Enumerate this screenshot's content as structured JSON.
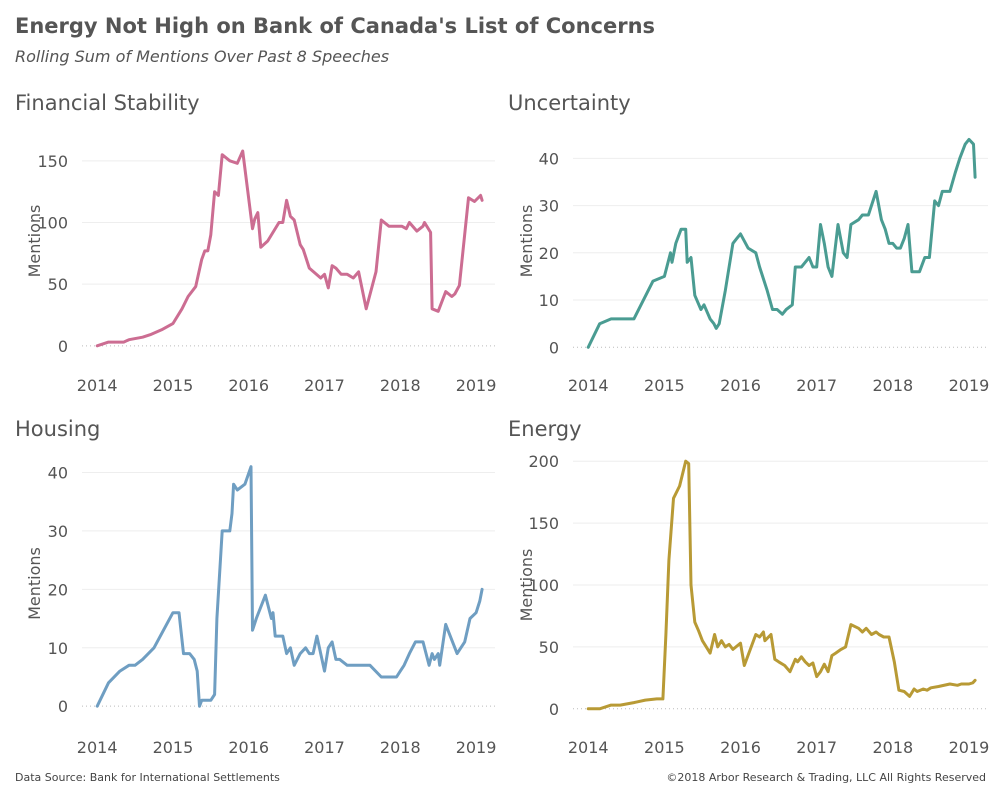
{
  "title": "Energy Not High on Bank of Canada's List of Concerns",
  "subtitle": "Rolling Sum of Mentions Over Past 8 Speeches",
  "footer": {
    "source": "Data Source: Bank for International Settlements",
    "copyright": "©2018 Arbor Research & Trading, LLC   All Rights Reserved"
  },
  "chart_data": [
    {
      "type": "line",
      "title": "Financial Stability",
      "ylabel": "Mentions",
      "color": "#cc6d92",
      "xlim": [
        2013.8,
        2019.25
      ],
      "ylim": [
        -5,
        175
      ],
      "xticks": [
        2014,
        2015,
        2016,
        2017,
        2018,
        2019
      ],
      "yticks": [
        0,
        50,
        100,
        150
      ],
      "x": [
        2014.0,
        2014.15,
        2014.35,
        2014.42,
        2014.6,
        2014.7,
        2014.85,
        2015.0,
        2015.12,
        2015.2,
        2015.3,
        2015.38,
        2015.42,
        2015.46,
        2015.5,
        2015.55,
        2015.6,
        2015.65,
        2015.75,
        2015.85,
        2015.92,
        2016.05,
        2016.08,
        2016.12,
        2016.16,
        2016.25,
        2016.4,
        2016.45,
        2016.5,
        2016.55,
        2016.6,
        2016.68,
        2016.72,
        2016.8,
        2016.95,
        2017.0,
        2017.05,
        2017.1,
        2017.15,
        2017.22,
        2017.3,
        2017.38,
        2017.45,
        2017.55,
        2017.68,
        2017.75,
        2017.85,
        2018.02,
        2018.08,
        2018.12,
        2018.22,
        2018.3,
        2018.32,
        2018.4,
        2018.42,
        2018.5,
        2018.6,
        2018.68,
        2018.72,
        2018.78,
        2018.9,
        2018.98,
        2019.06,
        2019.08
      ],
      "values": [
        0,
        3,
        3,
        5,
        7,
        9,
        13,
        18,
        30,
        40,
        48,
        70,
        77,
        77,
        90,
        125,
        122,
        155,
        150,
        148,
        158,
        95,
        103,
        108,
        80,
        85,
        100,
        100,
        118,
        105,
        102,
        82,
        78,
        63,
        55,
        58,
        47,
        65,
        63,
        58,
        58,
        55,
        60,
        30,
        60,
        102,
        97,
        97,
        95,
        100,
        93,
        97,
        100,
        92,
        30,
        28,
        44,
        40,
        42,
        49,
        120,
        117,
        122,
        118
      ]
    },
    {
      "type": "line",
      "title": "Uncertainty",
      "ylabel": "Mentions",
      "color": "#4a9c92",
      "xlim": [
        2013.8,
        2019.25
      ],
      "ylim": [
        -1,
        46
      ],
      "xticks": [
        2014,
        2015,
        2016,
        2017,
        2018,
        2019
      ],
      "yticks": [
        0,
        10,
        20,
        30,
        40
      ],
      "x": [
        2014.0,
        2014.15,
        2014.3,
        2014.45,
        2014.6,
        2014.85,
        2015.0,
        2015.08,
        2015.1,
        2015.15,
        2015.22,
        2015.28,
        2015.3,
        2015.35,
        2015.4,
        2015.48,
        2015.52,
        2015.6,
        2015.65,
        2015.68,
        2015.72,
        2015.8,
        2015.9,
        2015.95,
        2016.0,
        2016.1,
        2016.2,
        2016.25,
        2016.35,
        2016.42,
        2016.48,
        2016.55,
        2016.6,
        2016.68,
        2016.72,
        2016.8,
        2016.85,
        2016.9,
        2016.95,
        2017.0,
        2017.05,
        2017.1,
        2017.15,
        2017.2,
        2017.28,
        2017.35,
        2017.4,
        2017.45,
        2017.55,
        2017.6,
        2017.68,
        2017.78,
        2017.85,
        2017.9,
        2017.95,
        2018.0,
        2018.05,
        2018.1,
        2018.15,
        2018.2,
        2018.25,
        2018.3,
        2018.35,
        2018.42,
        2018.48,
        2018.55,
        2018.6,
        2018.65,
        2018.75,
        2018.82,
        2018.88,
        2018.95,
        2019.0,
        2019.06,
        2019.08
      ],
      "values": [
        0,
        5,
        6,
        6,
        6,
        14,
        15,
        20,
        18,
        22,
        25,
        25,
        18,
        19,
        11,
        8,
        9,
        6,
        5,
        4,
        5,
        12,
        22,
        23,
        24,
        21,
        20,
        17,
        12,
        8,
        8,
        7,
        8,
        9,
        17,
        17,
        18,
        19,
        17,
        17,
        26,
        22,
        17,
        15,
        26,
        20,
        19,
        26,
        27,
        28,
        28,
        33,
        27,
        25,
        22,
        22,
        21,
        21,
        23,
        26,
        16,
        16,
        16,
        19,
        19,
        31,
        30,
        33,
        33,
        37,
        40,
        43,
        44,
        43,
        36
      ]
    },
    {
      "type": "line",
      "title": "Housing",
      "ylabel": "Mentions",
      "color": "#6f9ec2",
      "xlim": [
        2013.8,
        2019.25
      ],
      "ylim": [
        -1,
        43
      ],
      "xticks": [
        2014,
        2015,
        2016,
        2017,
        2018,
        2019
      ],
      "yticks": [
        0,
        10,
        20,
        30,
        40
      ],
      "x": [
        2014.0,
        2014.15,
        2014.3,
        2014.42,
        2014.5,
        2014.6,
        2014.75,
        2015.0,
        2015.08,
        2015.14,
        2015.22,
        2015.28,
        2015.32,
        2015.35,
        2015.38,
        2015.4,
        2015.5,
        2015.55,
        2015.58,
        2015.65,
        2015.7,
        2015.75,
        2015.78,
        2015.8,
        2015.85,
        2015.95,
        2016.03,
        2016.05,
        2016.1,
        2016.22,
        2016.28,
        2016.3,
        2016.32,
        2016.35,
        2016.4,
        2016.45,
        2016.5,
        2016.55,
        2016.6,
        2016.68,
        2016.75,
        2016.8,
        2016.85,
        2016.9,
        2016.95,
        2017.0,
        2017.05,
        2017.1,
        2017.15,
        2017.2,
        2017.3,
        2017.4,
        2017.5,
        2017.6,
        2017.75,
        2017.8,
        2017.88,
        2017.95,
        2018.0,
        2018.05,
        2018.12,
        2018.2,
        2018.25,
        2018.3,
        2018.38,
        2018.42,
        2018.45,
        2018.5,
        2018.52,
        2018.6,
        2018.75,
        2018.85,
        2018.92,
        2019.0,
        2019.05,
        2019.08
      ],
      "values": [
        0,
        4,
        6,
        7,
        7,
        8,
        10,
        16,
        16,
        9,
        9,
        8,
        6,
        0,
        1,
        1,
        1,
        2,
        15,
        30,
        30,
        30,
        33,
        38,
        37,
        38,
        41,
        13,
        15,
        19,
        16,
        15,
        16,
        12,
        12,
        12,
        9,
        10,
        7,
        9,
        10,
        9,
        9,
        12,
        9,
        6,
        10,
        11,
        8,
        8,
        7,
        7,
        7,
        7,
        5,
        5,
        5,
        5,
        6,
        7,
        9,
        11,
        11,
        11,
        7,
        9,
        8,
        9,
        7,
        14,
        9,
        11,
        15,
        16,
        18,
        20
      ]
    },
    {
      "type": "line",
      "title": "Energy",
      "ylabel": "Mentions",
      "color": "#b89a35",
      "xlim": [
        2013.8,
        2019.25
      ],
      "ylim": [
        -5,
        205
      ],
      "xticks": [
        2014,
        2015,
        2016,
        2017,
        2018,
        2019
      ],
      "yticks": [
        0,
        50,
        100,
        150,
        200
      ],
      "x": [
        2014.0,
        2014.15,
        2014.3,
        2014.42,
        2014.6,
        2014.75,
        2014.9,
        2014.98,
        2015.02,
        2015.06,
        2015.12,
        2015.2,
        2015.28,
        2015.32,
        2015.35,
        2015.4,
        2015.45,
        2015.5,
        2015.55,
        2015.6,
        2015.66,
        2015.7,
        2015.75,
        2015.8,
        2015.85,
        2015.9,
        2016.0,
        2016.05,
        2016.2,
        2016.25,
        2016.3,
        2016.32,
        2016.4,
        2016.45,
        2016.5,
        2016.58,
        2016.65,
        2016.72,
        2016.75,
        2016.8,
        2016.85,
        2016.9,
        2016.95,
        2017.0,
        2017.05,
        2017.1,
        2017.15,
        2017.2,
        2017.25,
        2017.32,
        2017.38,
        2017.45,
        2017.55,
        2017.6,
        2017.65,
        2017.72,
        2017.78,
        2017.82,
        2017.88,
        2017.95,
        2018.02,
        2018.08,
        2018.15,
        2018.22,
        2018.28,
        2018.32,
        2018.4,
        2018.45,
        2018.5,
        2018.6,
        2018.75,
        2018.85,
        2018.9,
        2019.0,
        2019.05,
        2019.08
      ],
      "values": [
        0,
        0,
        3,
        3,
        5,
        7,
        8,
        8,
        60,
        120,
        170,
        180,
        200,
        198,
        100,
        70,
        63,
        55,
        50,
        45,
        60,
        50,
        55,
        50,
        52,
        48,
        53,
        35,
        60,
        58,
        62,
        55,
        60,
        40,
        38,
        35,
        30,
        40,
        38,
        42,
        38,
        35,
        37,
        26,
        30,
        36,
        30,
        43,
        45,
        48,
        50,
        68,
        65,
        62,
        65,
        60,
        62,
        60,
        58,
        58,
        38,
        15,
        14,
        10,
        16,
        14,
        16,
        15,
        17,
        18,
        20,
        19,
        20,
        20,
        21,
        23
      ]
    }
  ]
}
